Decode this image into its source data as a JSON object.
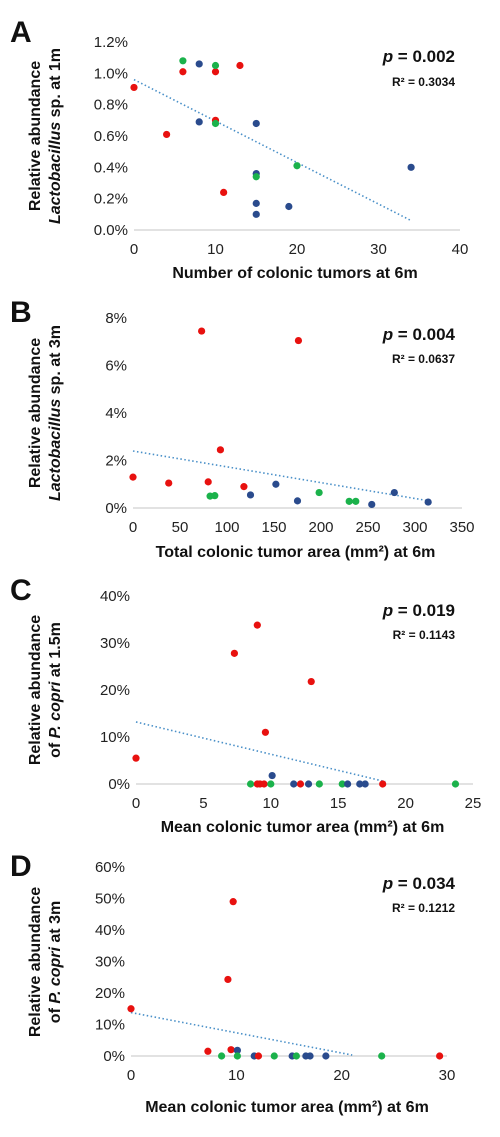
{
  "colors": {
    "red": "#e8110f",
    "green": "#1bb24b",
    "blue": "#2a4b8d",
    "trend": "#4a90c8"
  },
  "chart_data": [
    {
      "panel": "A",
      "type": "scatter",
      "ylabel_line1": "Relative abundance",
      "ylabel_line2_italic": "Lactobacillus",
      "ylabel_line2_rest": " sp. at 1m",
      "xlabel": "Number of colonic tumors at 6m",
      "p_label": "p",
      "p_value": " = 0.002",
      "r2": "R² = 0.3034",
      "xlim": [
        0,
        40
      ],
      "ylim": [
        0,
        1.2
      ],
      "x_ticks": [
        0,
        10,
        20,
        30,
        40
      ],
      "x_tick_labels": [
        "0",
        "10",
        "20",
        "30",
        "40"
      ],
      "y_ticks": [
        0,
        0.2,
        0.4,
        0.6,
        0.8,
        1.0,
        1.2
      ],
      "y_tick_labels": [
        "0.0%",
        "0.2%",
        "0.4%",
        "0.6%",
        "0.8%",
        "1.0%",
        "1.2%"
      ],
      "trend": [
        [
          0,
          0.96
        ],
        [
          34,
          0.06
        ]
      ],
      "points": [
        {
          "x": 0,
          "y": 0.91,
          "c": "red"
        },
        {
          "x": 4,
          "y": 0.61,
          "c": "red"
        },
        {
          "x": 6,
          "y": 1.01,
          "c": "red"
        },
        {
          "x": 6,
          "y": 1.08,
          "c": "green"
        },
        {
          "x": 8,
          "y": 1.06,
          "c": "blue"
        },
        {
          "x": 8,
          "y": 0.69,
          "c": "blue"
        },
        {
          "x": 10,
          "y": 1.01,
          "c": "red"
        },
        {
          "x": 10,
          "y": 1.05,
          "c": "green"
        },
        {
          "x": 10,
          "y": 0.7,
          "c": "red"
        },
        {
          "x": 10,
          "y": 0.68,
          "c": "green"
        },
        {
          "x": 11,
          "y": 0.24,
          "c": "red"
        },
        {
          "x": 13,
          "y": 1.05,
          "c": "red"
        },
        {
          "x": 15,
          "y": 0.68,
          "c": "blue"
        },
        {
          "x": 15,
          "y": 0.36,
          "c": "blue"
        },
        {
          "x": 15,
          "y": 0.34,
          "c": "green"
        },
        {
          "x": 15,
          "y": 0.17,
          "c": "blue"
        },
        {
          "x": 15,
          "y": 0.1,
          "c": "blue"
        },
        {
          "x": 19,
          "y": 0.15,
          "c": "blue"
        },
        {
          "x": 20,
          "y": 0.41,
          "c": "green"
        },
        {
          "x": 34,
          "y": 0.4,
          "c": "blue"
        }
      ]
    },
    {
      "panel": "B",
      "type": "scatter",
      "ylabel_line1": "Relative abundance",
      "ylabel_line2_italic": "Lactobacillus",
      "ylabel_line2_rest": " sp. at 3m",
      "xlabel": "Total colonic tumor area (mm²) at 6m",
      "p_label": "p",
      "p_value": " = 0.004",
      "r2": "R² = 0.0637",
      "xlim": [
        0,
        350
      ],
      "ylim": [
        0,
        8
      ],
      "x_ticks": [
        0,
        50,
        100,
        150,
        200,
        250,
        300,
        350
      ],
      "x_tick_labels": [
        "0",
        "50",
        "100",
        "150",
        "200",
        "250",
        "300",
        "350"
      ],
      "y_ticks": [
        0,
        2,
        4,
        6,
        8
      ],
      "y_tick_labels": [
        "0%",
        "2%",
        "4%",
        "6%",
        "8%"
      ],
      "trend": [
        [
          0,
          2.4
        ],
        [
          315,
          0.3
        ]
      ],
      "points": [
        {
          "x": 0,
          "y": 1.3,
          "c": "red"
        },
        {
          "x": 38,
          "y": 1.05,
          "c": "red"
        },
        {
          "x": 73,
          "y": 7.45,
          "c": "red"
        },
        {
          "x": 80,
          "y": 1.1,
          "c": "red"
        },
        {
          "x": 82,
          "y": 0.5,
          "c": "green"
        },
        {
          "x": 87,
          "y": 0.52,
          "c": "green"
        },
        {
          "x": 93,
          "y": 2.45,
          "c": "red"
        },
        {
          "x": 118,
          "y": 0.9,
          "c": "red"
        },
        {
          "x": 125,
          "y": 0.55,
          "c": "blue"
        },
        {
          "x": 152,
          "y": 1.0,
          "c": "blue"
        },
        {
          "x": 175,
          "y": 0.3,
          "c": "blue"
        },
        {
          "x": 176,
          "y": 7.05,
          "c": "red"
        },
        {
          "x": 198,
          "y": 0.65,
          "c": "green"
        },
        {
          "x": 230,
          "y": 0.28,
          "c": "green"
        },
        {
          "x": 237,
          "y": 0.28,
          "c": "green"
        },
        {
          "x": 254,
          "y": 0.15,
          "c": "blue"
        },
        {
          "x": 278,
          "y": 0.65,
          "c": "blue"
        },
        {
          "x": 314,
          "y": 0.25,
          "c": "blue"
        }
      ]
    },
    {
      "panel": "C",
      "type": "scatter",
      "ylabel_line1": "Relative abundance",
      "ylabel_line2_prefix": "of ",
      "ylabel_line2_italic": "P. copri",
      "ylabel_line2_rest": " at 1.5m",
      "xlabel": "Mean colonic tumor area (mm²) at 6m",
      "p_label": "p",
      "p_value": " = 0.019",
      "r2": "R² = 0.1143",
      "xlim": [
        0,
        25
      ],
      "ylim": [
        0,
        40
      ],
      "x_ticks": [
        0,
        5,
        10,
        15,
        20,
        25
      ],
      "x_tick_labels": [
        "0",
        "5",
        "10",
        "15",
        "20",
        "25"
      ],
      "y_ticks": [
        0,
        10,
        20,
        30,
        40
      ],
      "y_tick_labels": [
        "0%",
        "10%",
        "20%",
        "30%",
        "40%"
      ],
      "trend": [
        [
          0,
          13.2
        ],
        [
          18.5,
          0.5
        ]
      ],
      "points": [
        {
          "x": 0,
          "y": 5.5,
          "c": "red"
        },
        {
          "x": 7.3,
          "y": 27.8,
          "c": "red"
        },
        {
          "x": 9.0,
          "y": 33.8,
          "c": "red"
        },
        {
          "x": 9.6,
          "y": 11.0,
          "c": "red"
        },
        {
          "x": 13.0,
          "y": 21.8,
          "c": "red"
        },
        {
          "x": 10.1,
          "y": 1.8,
          "c": "blue"
        },
        {
          "x": 8.5,
          "y": 0,
          "c": "green"
        },
        {
          "x": 9.0,
          "y": 0,
          "c": "red"
        },
        {
          "x": 9.2,
          "y": 0,
          "c": "red"
        },
        {
          "x": 9.5,
          "y": 0,
          "c": "red"
        },
        {
          "x": 10.0,
          "y": 0,
          "c": "green"
        },
        {
          "x": 11.7,
          "y": 0,
          "c": "blue"
        },
        {
          "x": 12.2,
          "y": 0,
          "c": "red"
        },
        {
          "x": 12.8,
          "y": 0,
          "c": "blue"
        },
        {
          "x": 13.6,
          "y": 0,
          "c": "green"
        },
        {
          "x": 15.3,
          "y": 0,
          "c": "green"
        },
        {
          "x": 15.7,
          "y": 0,
          "c": "blue"
        },
        {
          "x": 16.6,
          "y": 0,
          "c": "blue"
        },
        {
          "x": 17.0,
          "y": 0,
          "c": "blue"
        },
        {
          "x": 18.3,
          "y": 0,
          "c": "red"
        },
        {
          "x": 23.7,
          "y": 0,
          "c": "green"
        }
      ]
    },
    {
      "panel": "D",
      "type": "scatter",
      "ylabel_line1": "Relative abundance",
      "ylabel_line2_prefix": "of ",
      "ylabel_line2_italic": "P. copri",
      "ylabel_line2_rest": " at 3m",
      "xlabel": "Mean colonic tumor area (mm²) at 6m",
      "p_label": "p",
      "p_value": " = 0.034",
      "r2": "R² = 0.1212",
      "xlim": [
        0,
        30
      ],
      "ylim": [
        0,
        60
      ],
      "x_ticks": [
        0,
        10,
        20,
        30
      ],
      "x_tick_labels": [
        "0",
        "10",
        "20",
        "30"
      ],
      "y_ticks": [
        0,
        10,
        20,
        30,
        40,
        50,
        60
      ],
      "y_tick_labels": [
        "0%",
        "10%",
        "20%",
        "30%",
        "40%",
        "50%",
        "60%"
      ],
      "trend": [
        [
          0,
          13.8
        ],
        [
          21,
          0.3
        ]
      ],
      "points": [
        {
          "x": 0,
          "y": 15.0,
          "c": "red"
        },
        {
          "x": 7.3,
          "y": 1.5,
          "c": "red"
        },
        {
          "x": 9.2,
          "y": 24.3,
          "c": "red"
        },
        {
          "x": 9.5,
          "y": 2.0,
          "c": "red"
        },
        {
          "x": 9.7,
          "y": 49.0,
          "c": "red"
        },
        {
          "x": 10.1,
          "y": 1.8,
          "c": "blue"
        },
        {
          "x": 8.6,
          "y": 0,
          "c": "green"
        },
        {
          "x": 10.1,
          "y": 0,
          "c": "green"
        },
        {
          "x": 11.7,
          "y": 0,
          "c": "blue"
        },
        {
          "x": 12.1,
          "y": 0,
          "c": "red"
        },
        {
          "x": 13.6,
          "y": 0,
          "c": "green"
        },
        {
          "x": 15.3,
          "y": 0,
          "c": "blue"
        },
        {
          "x": 15.7,
          "y": 0,
          "c": "green"
        },
        {
          "x": 16.6,
          "y": 0,
          "c": "blue"
        },
        {
          "x": 17.0,
          "y": 0,
          "c": "blue"
        },
        {
          "x": 18.5,
          "y": 0,
          "c": "blue"
        },
        {
          "x": 23.8,
          "y": 0,
          "c": "green"
        },
        {
          "x": 29.3,
          "y": 0,
          "c": "red"
        }
      ]
    }
  ]
}
